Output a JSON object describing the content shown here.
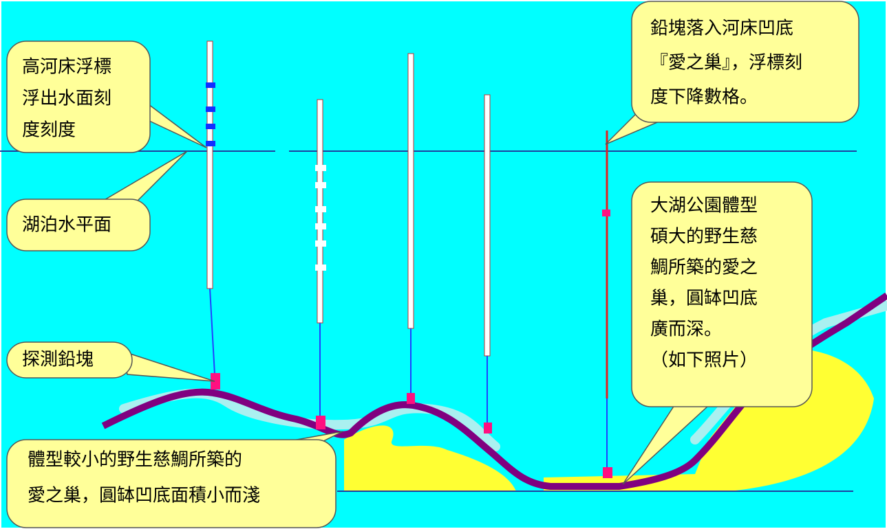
{
  "callouts": [
    {
      "lines": [
        "高河床浮標",
        "浮出水面刻",
        "度刻度"
      ]
    },
    {
      "lines": [
        "湖泊水平面"
      ]
    },
    {
      "lines": [
        "探測鉛塊"
      ]
    },
    {
      "lines": [
        "體型較小的野生慈鯛所築的",
        "愛之巢，圓缽凹底面積小而淺"
      ]
    },
    {
      "lines": [
        "鉛塊落入河床凹底",
        "『愛之巢』，浮標刻",
        "度下降數格。"
      ]
    },
    {
      "lines": [
        "大湖公園體型",
        "碩大的野生慈",
        "鯛所築的愛之",
        "巢，圓缽凹底",
        "廣而深。",
        "（如下照片）"
      ]
    }
  ]
}
